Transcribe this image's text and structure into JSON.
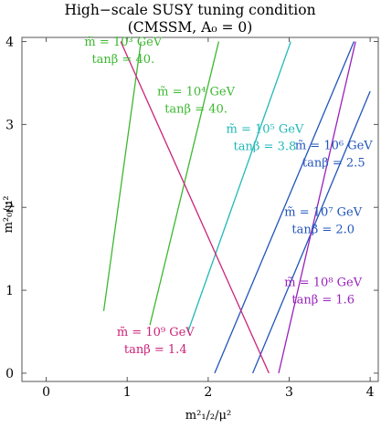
{
  "chart_data": {
    "type": "line",
    "title_line1": "High−scale SUSY tuning condition",
    "title_line2": "(CMSSM, A₀ = 0)",
    "xlabel": "m²₁/₂/μ²",
    "ylabel": "m²₀/μ²",
    "xlim": [
      -0.3,
      4.1
    ],
    "ylim": [
      -0.1,
      4.05
    ],
    "x_ticks": [
      0,
      1,
      2,
      3,
      4
    ],
    "y_ticks": [
      0,
      1,
      2,
      3,
      4
    ],
    "x_tick_labels": [
      "0",
      "1",
      "2",
      "3",
      "4"
    ],
    "y_tick_labels": [
      "0",
      "1",
      "2",
      "3",
      "4"
    ],
    "grid": false,
    "legend": "none",
    "series": [
      {
        "color": "#3cb830",
        "x": [
          0.71,
          1.17
        ],
        "y": [
          0.75,
          4.0
        ]
      },
      {
        "color": "#3cb830",
        "x": [
          1.28,
          2.13
        ],
        "y": [
          0.58,
          4.0
        ]
      },
      {
        "color": "#22b8b8",
        "x": [
          1.75,
          3.02
        ],
        "y": [
          0.5,
          4.0
        ]
      },
      {
        "color": "#2255bb",
        "x": [
          2.08,
          3.8
        ],
        "y": [
          0.0,
          4.0
        ]
      },
      {
        "color": "#2255bb",
        "x": [
          2.55,
          4.0
        ],
        "y": [
          0.0,
          3.4
        ]
      },
      {
        "color": "#9922bb",
        "x": [
          2.87,
          3.82
        ],
        "y": [
          0.0,
          4.0
        ]
      },
      {
        "color": "#cc2277",
        "x": [
          0.92,
          2.75
        ],
        "y": [
          4.0,
          0.0
        ]
      }
    ],
    "annotations": [
      {
        "line1": "m̃  =  10³ GeV",
        "line2": "tanβ  =  40.",
        "color": "#3cb830",
        "x": 0.95,
        "y": 3.95
      },
      {
        "line1": "m̃  =  10⁴ GeV",
        "line2": "tanβ  =  40.",
        "color": "#3cb830",
        "x": 1.85,
        "y": 3.35
      },
      {
        "line1": "m̃  =  10⁵ GeV",
        "line2": "tanβ  =  3.8",
        "color": "#22b8b8",
        "x": 2.7,
        "y": 2.9
      },
      {
        "line1": "m̃  =  10⁶ GeV",
        "line2": "tanβ  =  2.5",
        "color": "#2255bb",
        "x": 3.55,
        "y": 2.7
      },
      {
        "line1": "m̃  =  10⁷ GeV",
        "line2": "tanβ  =  2.0",
        "color": "#2255bb",
        "x": 3.42,
        "y": 1.9
      },
      {
        "line1": "m̃  =  10⁸ GeV",
        "line2": "tanβ  =  1.6",
        "color": "#9922bb",
        "x": 3.42,
        "y": 1.05
      },
      {
        "line1": "m̃  =  10⁹ GeV",
        "line2": "tanβ  =  1.4",
        "color": "#cc2277",
        "x": 1.35,
        "y": 0.45
      }
    ]
  }
}
